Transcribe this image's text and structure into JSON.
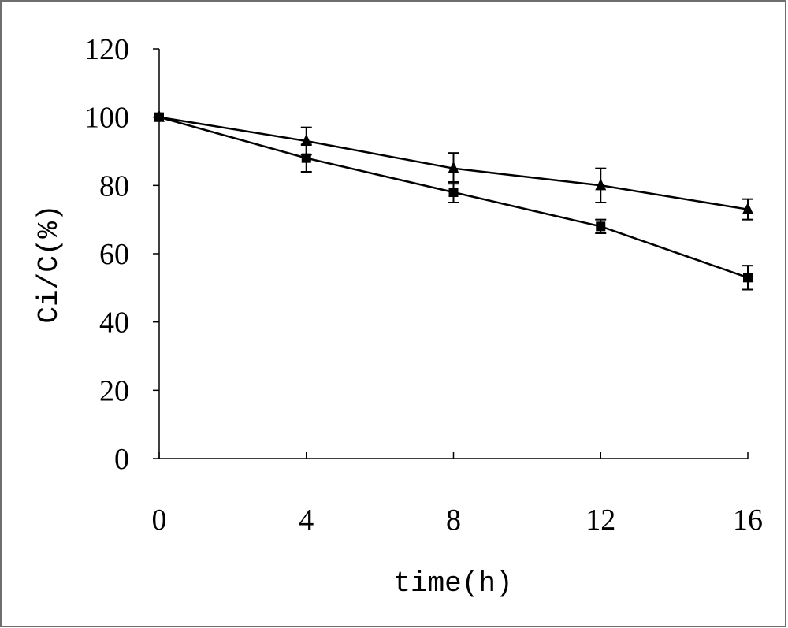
{
  "chart_data": {
    "type": "line",
    "title": "",
    "xlabel": "time(h)",
    "ylabel": "Ci/C(%)",
    "x": [
      0,
      4,
      8,
      12,
      16
    ],
    "xlim": [
      0,
      16
    ],
    "ylim": [
      0,
      120
    ],
    "xticks": [
      "0",
      "4",
      "8",
      "12",
      "16"
    ],
    "yticks": [
      "0",
      "20",
      "40",
      "60",
      "80",
      "100",
      "120"
    ],
    "grid": false,
    "legend": "none",
    "series": [
      {
        "name": "triangle",
        "marker": "triangle",
        "values": [
          100,
          93,
          85,
          80,
          73
        ],
        "errors": [
          0,
          4,
          4.5,
          5,
          3
        ]
      },
      {
        "name": "square",
        "marker": "square",
        "values": [
          100,
          88,
          78,
          68,
          53
        ],
        "errors": [
          0,
          4,
          3,
          2,
          3.5
        ]
      }
    ]
  }
}
